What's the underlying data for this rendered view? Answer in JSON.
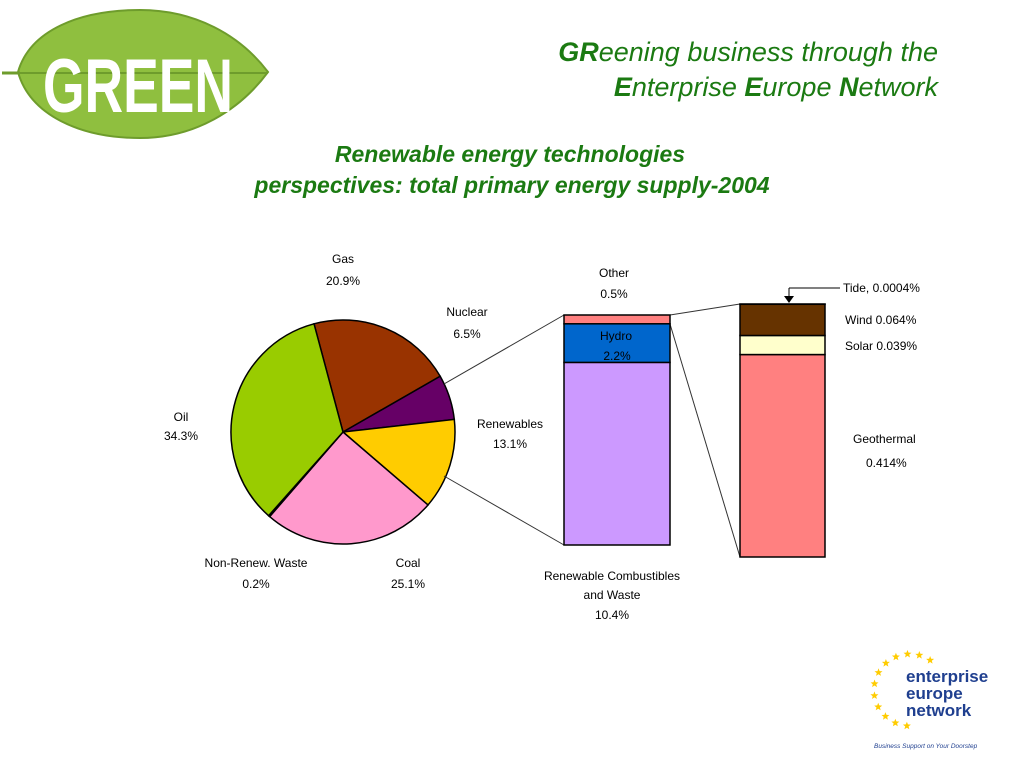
{
  "logo": {
    "text": "GREEN"
  },
  "header": {
    "line1": {
      "bold": "GR",
      "rest": "eening business through the"
    },
    "line2": {
      "e1": "E",
      "w1": "nterprise ",
      "e2": "E",
      "w2": "urope ",
      "n": "N",
      "w3": "etwork"
    }
  },
  "title": {
    "line1": "Renewable energy technologies",
    "line2": "perspectives: total primary energy supply-2004"
  },
  "chart_data": [
    {
      "type": "pie",
      "slices": [
        {
          "name": "Gas",
          "value": 20.9,
          "label": "20.9%",
          "color": "#993300"
        },
        {
          "name": "Nuclear",
          "value": 6.5,
          "label": "6.5%",
          "color": "#660066"
        },
        {
          "name": "Renewables",
          "value": 13.1,
          "label": "13.1%",
          "color": "#ffcc00"
        },
        {
          "name": "Coal",
          "value": 25.1,
          "label": "25.1%",
          "color": "#ff99cc"
        },
        {
          "name": "Non-Renew. Waste",
          "value": 0.2,
          "label": "0.2%",
          "color": "#ffffff"
        },
        {
          "name": "Oil",
          "value": 34.3,
          "label": "34.3%",
          "color": "#99cc00"
        }
      ]
    },
    {
      "type": "bar",
      "stacked": true,
      "segments": [
        {
          "name": "Renewable Combustibles and Waste",
          "line1": "Renewable Combustibles",
          "line2": "and Waste",
          "value": 10.4,
          "label": "10.4%",
          "color": "#cc99ff"
        },
        {
          "name": "Hydro",
          "value": 2.2,
          "label": "2.2%",
          "color": "#0066cc"
        },
        {
          "name": "Other",
          "value": 0.5,
          "label": "0.5%",
          "color": "#ff8080"
        }
      ]
    },
    {
      "type": "bar",
      "stacked": true,
      "segments": [
        {
          "name": "Geothermal",
          "value": 0.414,
          "label": "0.414%",
          "color": "#ff8080"
        },
        {
          "name": "Solar",
          "value": 0.039,
          "label": "Solar 0.039%",
          "color": "#ffffcc"
        },
        {
          "name": "Wind",
          "value": 0.064,
          "label": "Wind 0.064%",
          "color": "#663300"
        },
        {
          "name": "Tide",
          "value": 0.0004,
          "label": "Tide, 0.0004%",
          "color": "#663300"
        }
      ]
    }
  ],
  "footer_logo": {
    "line1": "enterprise",
    "line2": "europe",
    "line3": "network",
    "tagline": "Business Support on Your Doorstep",
    "star_color": "#ffcc00",
    "text_color": "#1f3f8f"
  }
}
